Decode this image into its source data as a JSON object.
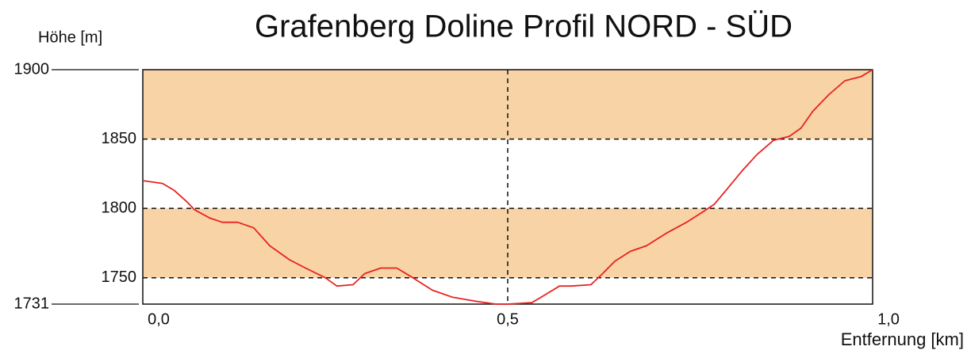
{
  "chart_data": {
    "type": "line",
    "title": "Grafenberg Doline Profil NORD - SÜD",
    "y_label": "Höhe [m]",
    "x_label": "Entfernung [km]",
    "x": [
      0,
      0.027,
      0.043,
      0.06,
      0.071,
      0.092,
      0.109,
      0.13,
      0.152,
      0.174,
      0.201,
      0.223,
      0.25,
      0.266,
      0.288,
      0.304,
      0.326,
      0.348,
      0.37,
      0.397,
      0.424,
      0.457,
      0.484,
      0.5,
      0.533,
      0.549,
      0.571,
      0.587,
      0.614,
      0.63,
      0.647,
      0.668,
      0.69,
      0.717,
      0.745,
      0.766,
      0.783,
      0.799,
      0.821,
      0.842,
      0.864,
      0.886,
      0.902,
      0.918,
      0.94,
      0.962,
      0.984,
      1.0
    ],
    "series": [
      {
        "name": "Profil",
        "color": "#e8231f",
        "values": [
          1820,
          1818,
          1813,
          1805,
          1799,
          1793,
          1790,
          1790,
          1786,
          1773,
          1763,
          1757,
          1750,
          1744,
          1745,
          1753,
          1757,
          1757,
          1750,
          1741,
          1736,
          1733,
          1731,
          1731,
          1732,
          1737,
          1744,
          1744,
          1745,
          1753,
          1762,
          1769,
          1773,
          1782,
          1790,
          1797,
          1803,
          1813,
          1827,
          1839,
          1849,
          1852,
          1858,
          1870,
          1882,
          1892,
          1895,
          1900
        ]
      }
    ],
    "xlim": [
      0,
      1.0
    ],
    "xticks": [
      {
        "value": 0,
        "label": "0,0"
      },
      {
        "value": 0.5,
        "label": "0,5"
      },
      {
        "value": 1.0,
        "label": "1,0"
      }
    ],
    "ylim": [
      1731,
      1900
    ],
    "yticks": [
      1731,
      1750,
      1800,
      1850,
      1900
    ],
    "bands": [
      [
        1750,
        1800
      ],
      [
        1850,
        1900
      ]
    ],
    "band_color": "#f8d3a6",
    "grid": true
  }
}
